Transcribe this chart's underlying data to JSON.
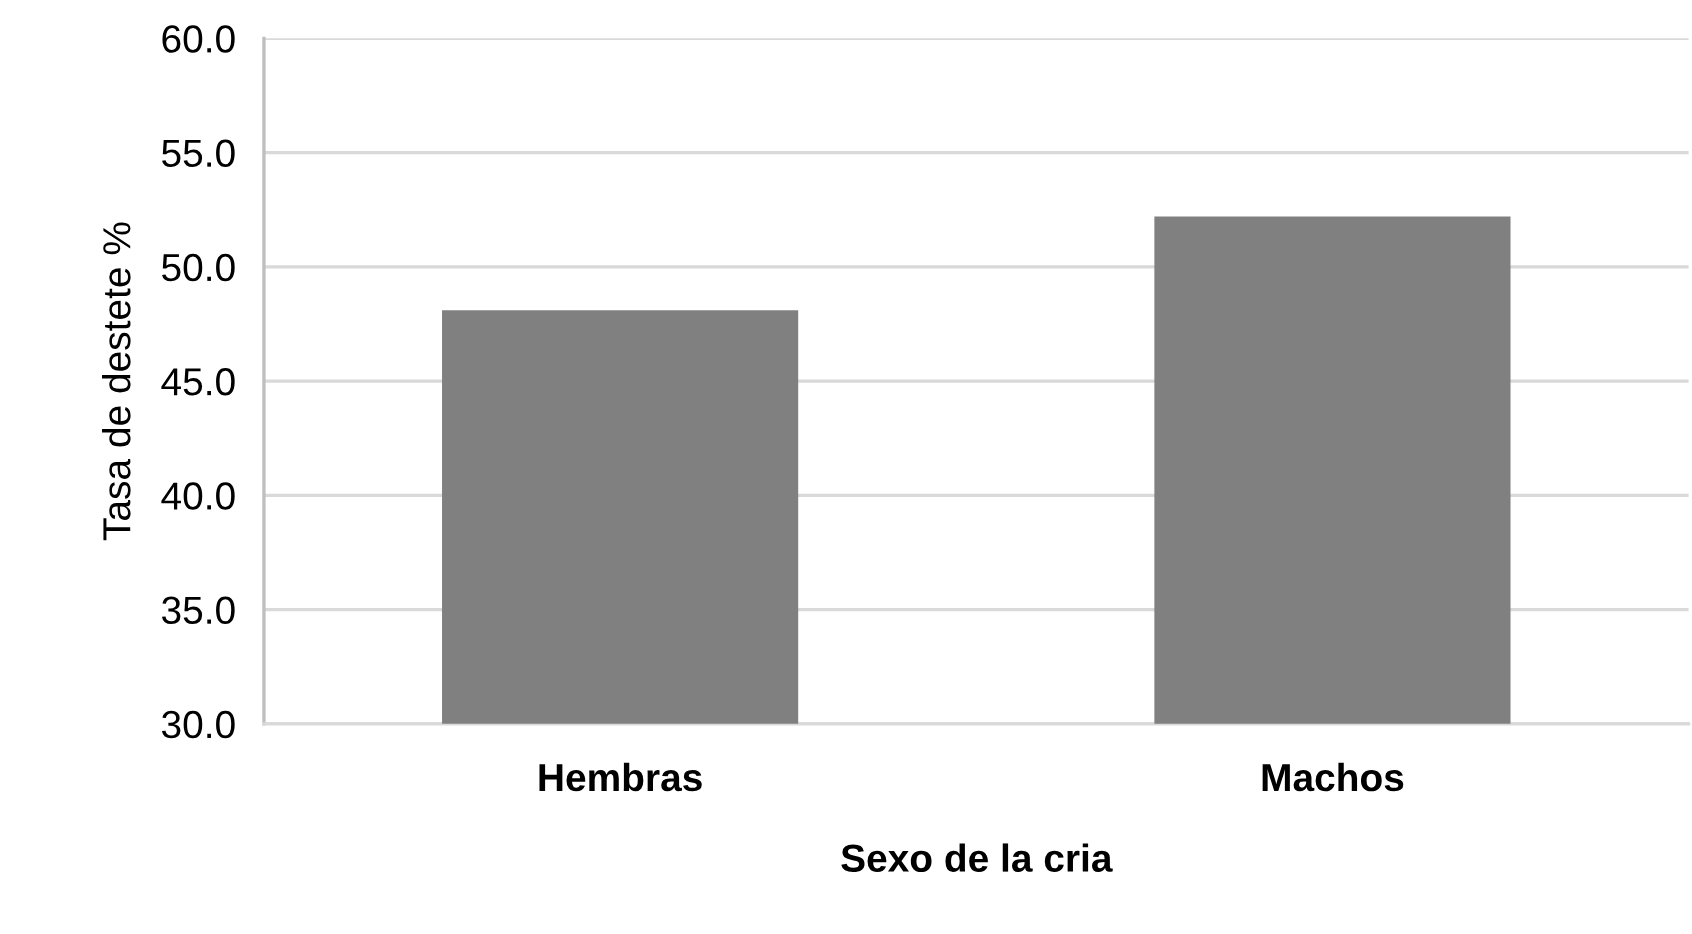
{
  "chart_data": {
    "type": "bar",
    "xlabel": "Sexo de la cria",
    "ylabel": "Tasa de destete %",
    "categories": [
      "Hembras",
      "Machos"
    ],
    "values": [
      48.1,
      52.2
    ],
    "color": "#808080",
    "ylim": [
      30,
      60
    ],
    "yticks": [
      {
        "value": 30,
        "label": "30.0"
      },
      {
        "value": 35,
        "label": "35.0"
      },
      {
        "value": 40,
        "label": "40.0"
      },
      {
        "value": 45,
        "label": "45.0"
      },
      {
        "value": 50,
        "label": "50.0"
      },
      {
        "value": 55,
        "label": "55.0"
      },
      {
        "value": 60,
        "label": "60.0"
      }
    ],
    "grid": "y",
    "legend": false
  }
}
